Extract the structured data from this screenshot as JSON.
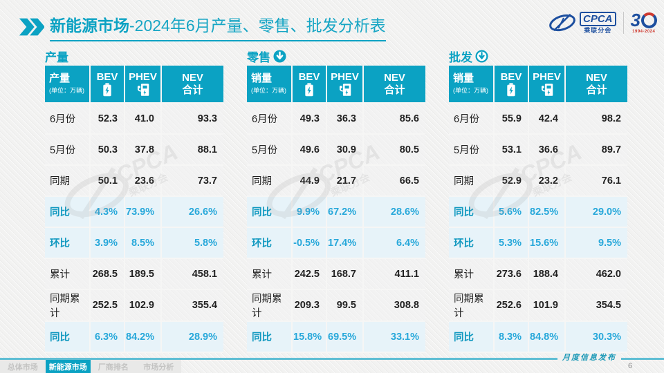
{
  "title": {
    "bold": "新能源市场",
    "rest": "-2024年6月产量、零售、批发分析表"
  },
  "logos": {
    "cpca_en": "CPCA",
    "cpca_cn": "乘联分会",
    "anniversary_digit": "3",
    "anniversary_years": "1994-2024"
  },
  "watermark": {
    "line1": "CPCA",
    "line2": "乘联分会"
  },
  "colors": {
    "accent": "#0ba2c3",
    "percent_text": "#28a8da",
    "percent_bg": "#e7f3f9",
    "footer_line": "#5fbed4",
    "logo_blue": "#1d4f9f",
    "logo_red": "#cf3a30"
  },
  "tables": [
    {
      "section": "产量",
      "arrow": "none",
      "header": {
        "label": "产量",
        "unit": "(单位：万辆)",
        "col1": "BEV",
        "col2": "PHEV",
        "col3_line1": "NEV",
        "col3_line2": "合计"
      },
      "rows": [
        {
          "label": "6月份",
          "values": [
            "52.3",
            "41.0",
            "93.3"
          ],
          "highlight": false
        },
        {
          "label": "5月份",
          "values": [
            "50.3",
            "37.8",
            "88.1"
          ],
          "highlight": false
        },
        {
          "label": "同期",
          "values": [
            "50.1",
            "23.6",
            "73.7"
          ],
          "highlight": false
        },
        {
          "label": "同比",
          "values": [
            "4.3%",
            "73.9%",
            "26.6%"
          ],
          "highlight": true
        },
        {
          "label": "环比",
          "values": [
            "3.9%",
            "8.5%",
            "5.8%"
          ],
          "highlight": true
        },
        {
          "label": "累计",
          "values": [
            "268.5",
            "189.5",
            "458.1"
          ],
          "highlight": false
        },
        {
          "label": "同期累计",
          "values": [
            "252.5",
            "102.9",
            "355.4"
          ],
          "highlight": false
        },
        {
          "label": "同比",
          "values": [
            "6.3%",
            "84.2%",
            "28.9%"
          ],
          "highlight": true
        }
      ]
    },
    {
      "section": "零售",
      "arrow": "filled-circle-down",
      "header": {
        "label": "销量",
        "unit": "(单位：万辆)",
        "col1": "BEV",
        "col2": "PHEV",
        "col3_line1": "NEV",
        "col3_line2": "合计"
      },
      "rows": [
        {
          "label": "6月份",
          "values": [
            "49.3",
            "36.3",
            "85.6"
          ],
          "highlight": false
        },
        {
          "label": "5月份",
          "values": [
            "49.6",
            "30.9",
            "80.5"
          ],
          "highlight": false
        },
        {
          "label": "同期",
          "values": [
            "44.9",
            "21.7",
            "66.5"
          ],
          "highlight": false
        },
        {
          "label": "同比",
          "values": [
            "9.9%",
            "67.2%",
            "28.6%"
          ],
          "highlight": true
        },
        {
          "label": "环比",
          "values": [
            "-0.5%",
            "17.4%",
            "6.4%"
          ],
          "highlight": true
        },
        {
          "label": "累计",
          "values": [
            "242.5",
            "168.7",
            "411.1"
          ],
          "highlight": false
        },
        {
          "label": "同期累计",
          "values": [
            "209.3",
            "99.5",
            "308.8"
          ],
          "highlight": false
        },
        {
          "label": "同比",
          "values": [
            "15.8%",
            "69.5%",
            "33.1%"
          ],
          "highlight": true
        }
      ]
    },
    {
      "section": "批发",
      "arrow": "ring-circle-down",
      "header": {
        "label": "销量",
        "unit": "(单位：万辆)",
        "col1": "BEV",
        "col2": "PHEV",
        "col3_line1": "NEV",
        "col3_line2": "合计"
      },
      "rows": [
        {
          "label": "6月份",
          "values": [
            "55.9",
            "42.4",
            "98.2"
          ],
          "highlight": false
        },
        {
          "label": "5月份",
          "values": [
            "53.1",
            "36.6",
            "89.7"
          ],
          "highlight": false
        },
        {
          "label": "同期",
          "values": [
            "52.9",
            "23.2",
            "76.1"
          ],
          "highlight": false
        },
        {
          "label": "同比",
          "values": [
            "5.6%",
            "82.5%",
            "29.0%"
          ],
          "highlight": true
        },
        {
          "label": "环比",
          "values": [
            "5.3%",
            "15.6%",
            "9.5%"
          ],
          "highlight": true
        },
        {
          "label": "累计",
          "values": [
            "273.6",
            "188.4",
            "462.0"
          ],
          "highlight": false
        },
        {
          "label": "同期累计",
          "values": [
            "252.6",
            "101.9",
            "354.5"
          ],
          "highlight": false
        },
        {
          "label": "同比",
          "values": [
            "8.3%",
            "84.8%",
            "30.3%"
          ],
          "highlight": true
        }
      ]
    }
  ],
  "footer": {
    "tabs": [
      {
        "label": "总体市场",
        "active": false
      },
      {
        "label": "新能源市场",
        "active": true
      },
      {
        "label": "厂商排名",
        "active": false
      },
      {
        "label": "市场分析",
        "active": false
      }
    ],
    "note": "月度信息发布",
    "page": "6"
  }
}
